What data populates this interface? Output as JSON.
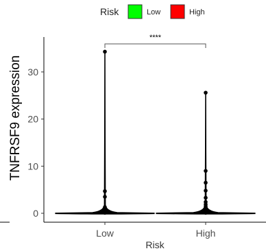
{
  "chart_data": {
    "type": "violin",
    "xlabel": "Risk",
    "ylabel": "TNFRSF9 expression",
    "categories": [
      "Low",
      "High"
    ],
    "ylim": [
      -1.5,
      36
    ],
    "yticks": [
      0,
      10,
      20,
      30
    ],
    "legend": {
      "title": "Risk",
      "position": "top",
      "items": [
        {
          "label": "Low",
          "color": "#00ff00"
        },
        {
          "label": "High",
          "color": "#ff0000"
        }
      ]
    },
    "series": [
      {
        "category": "Low",
        "color": "#00ff00",
        "max": 34.3,
        "min": 0,
        "points": [
          34.3,
          4.7,
          3.5,
          1.3,
          1.0,
          0.8,
          0.5,
          0.3,
          0.1
        ]
      },
      {
        "category": "High",
        "color": "#ff0000",
        "max": 25.6,
        "min": 0,
        "points": [
          25.6,
          9.0,
          6.5,
          4.8,
          3.3,
          2.4,
          1.9,
          1.5,
          1.2,
          0.8,
          0.5,
          0.3,
          0.1
        ]
      }
    ],
    "annotation": {
      "text": "****",
      "between": [
        "Low",
        "High"
      ],
      "y": 36
    },
    "grid": false
  }
}
